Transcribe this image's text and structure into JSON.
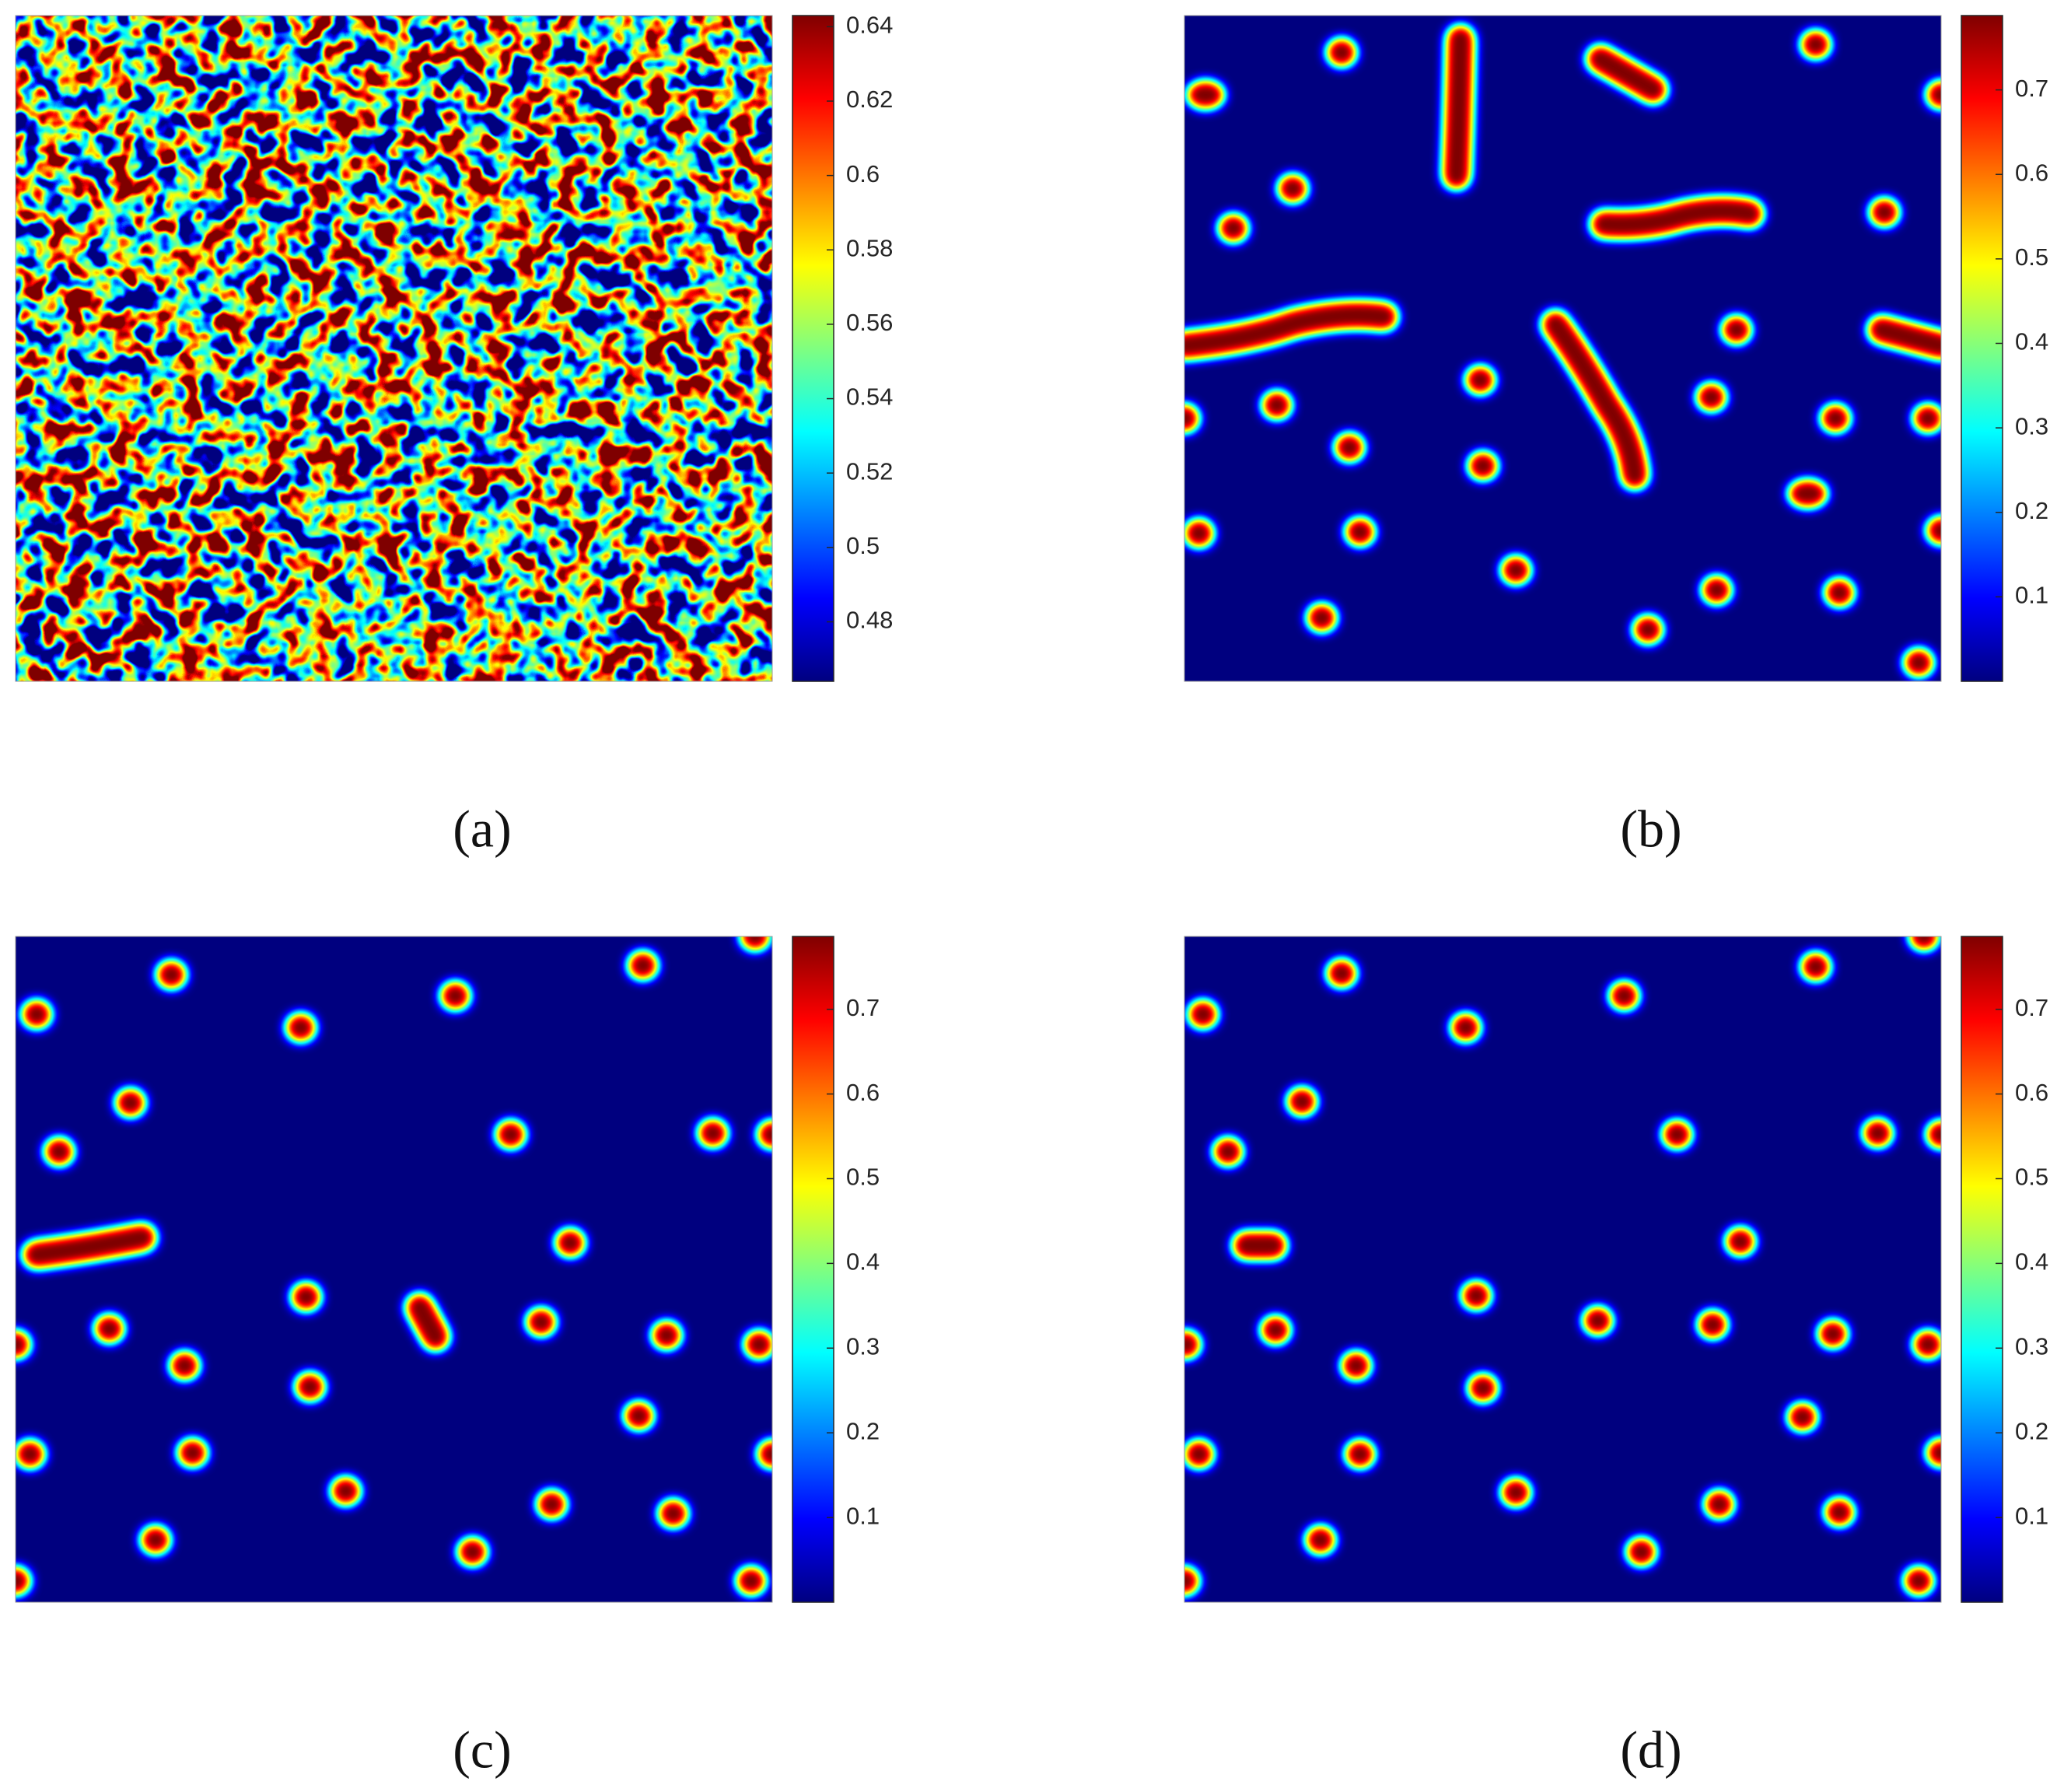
{
  "chart_data": [
    {
      "type": "heatmap",
      "label": "(a)",
      "clim": [
        0.464,
        0.643
      ],
      "cticks": [
        0.48,
        0.5,
        0.52,
        0.54,
        0.56,
        0.58,
        0.6,
        0.62,
        0.64
      ]
    },
    {
      "type": "heatmap",
      "label": "(b)",
      "clim": [
        0,
        0.788
      ],
      "cticks": [
        0.1,
        0.2,
        0.3,
        0.4,
        0.5,
        0.6,
        0.7
      ]
    },
    {
      "type": "heatmap",
      "label": "(c)",
      "clim": [
        0,
        0.786
      ],
      "cticks": [
        0.1,
        0.2,
        0.3,
        0.4,
        0.5,
        0.6,
        0.7
      ]
    },
    {
      "type": "heatmap",
      "label": "(d)",
      "clim": [
        0,
        0.786
      ],
      "cticks": [
        0.1,
        0.2,
        0.3,
        0.4,
        0.5,
        0.6,
        0.7
      ]
    }
  ]
}
